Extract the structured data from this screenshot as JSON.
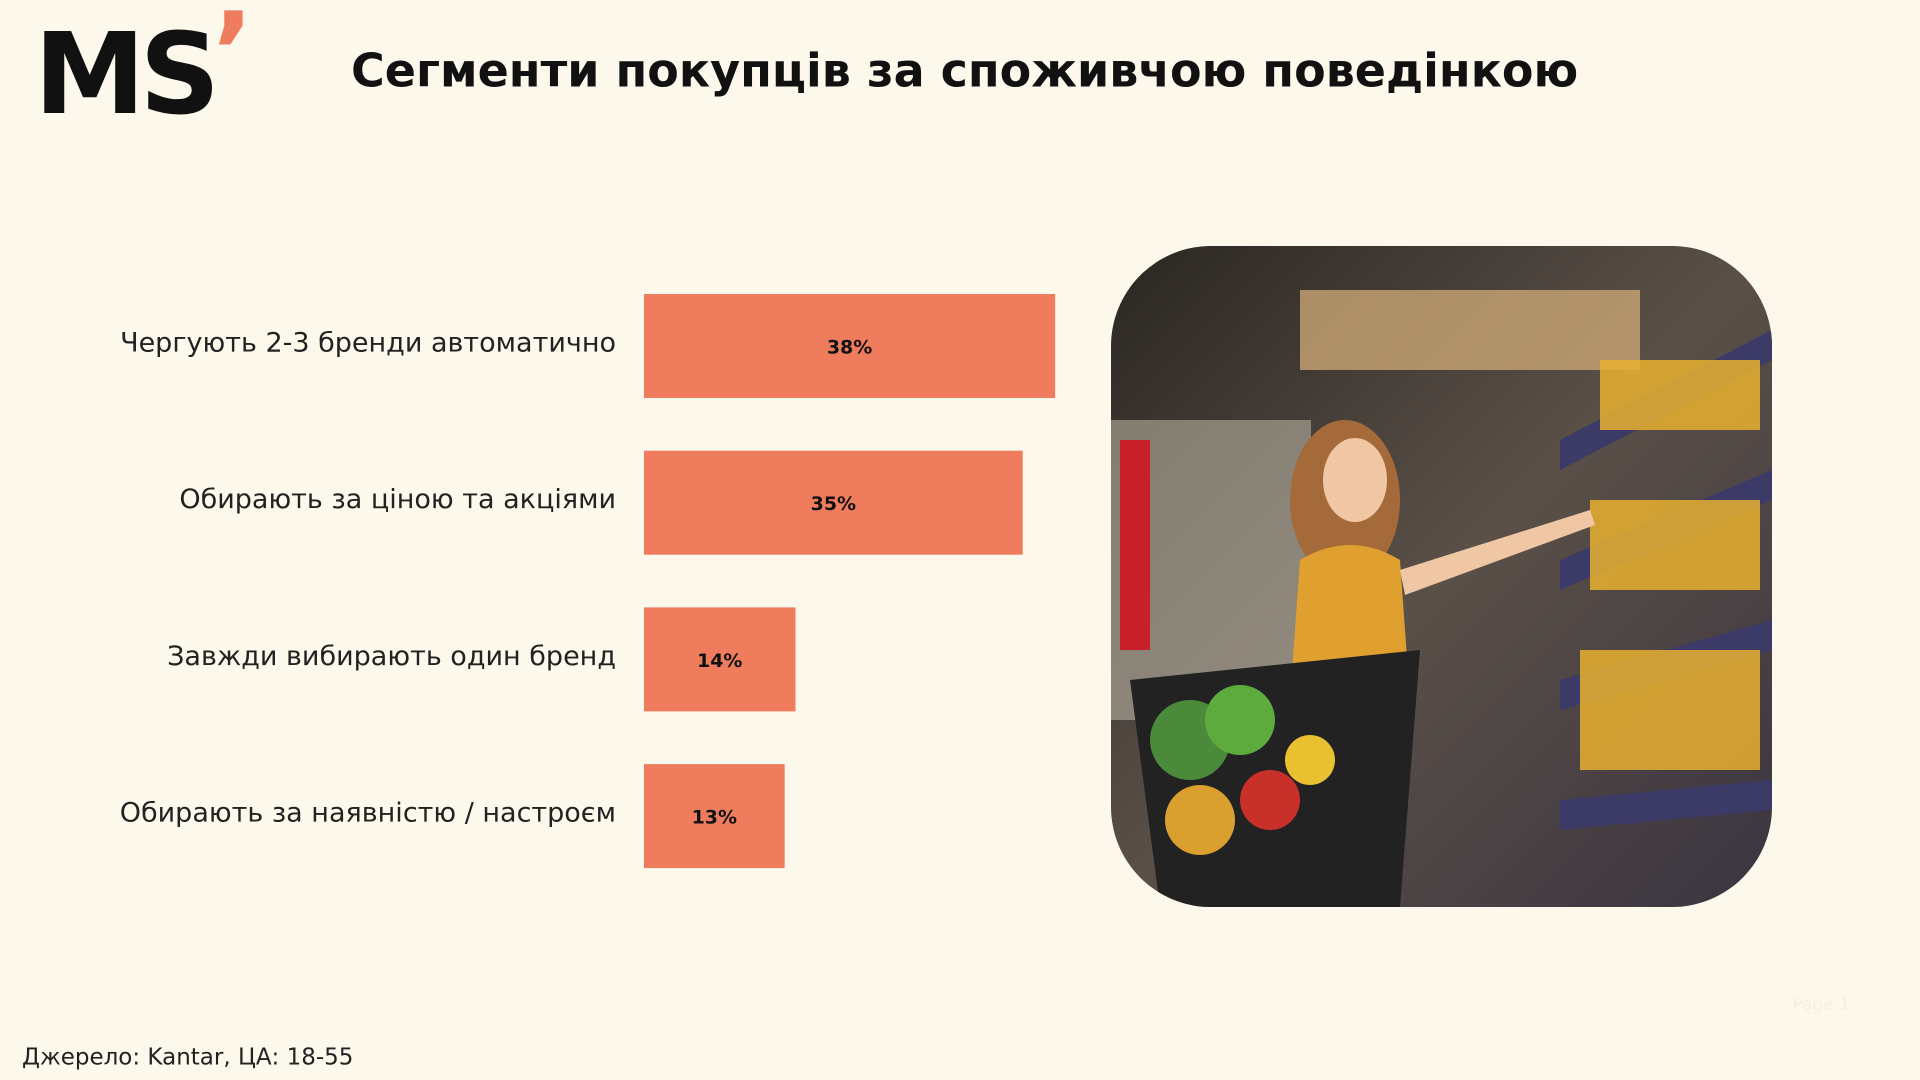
{
  "logo": {
    "text": "MS",
    "mark": "’"
  },
  "chart_data": {
    "type": "bar",
    "orientation": "horizontal",
    "title": "Сегменти покупців за споживчою поведінкою",
    "categories": [
      "Чергують 2-3 бренди автоматично",
      "Обирають за ціною та акціями",
      "Завжди вибирають один бренд",
      "Обирають за наявністю / настроєм"
    ],
    "values": [
      38,
      35,
      14,
      13
    ],
    "value_labels": [
      "38%",
      "35%",
      "14%",
      "13%"
    ],
    "color": "#f07c5e"
  },
  "footer": {
    "source": "Джерело: Kantar, ЦА: 18-55",
    "page": "Page 1"
  }
}
